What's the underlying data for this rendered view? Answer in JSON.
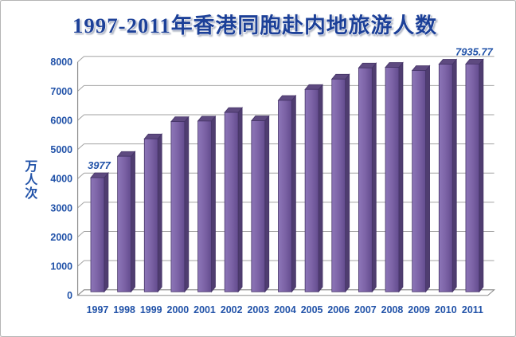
{
  "chart_data": {
    "type": "bar",
    "style": "3d-column",
    "title": "1997-2011年香港同胞赴内地旅游人数",
    "xlabel": "",
    "ylabel": "万人次",
    "categories": [
      "1997",
      "1998",
      "1999",
      "2000",
      "2001",
      "2002",
      "2003",
      "2004",
      "2005",
      "2006",
      "2007",
      "2008",
      "2009",
      "2010",
      "2011"
    ],
    "values": [
      3977,
      4720,
      5330,
      5930,
      5950,
      6250,
      5960,
      6670,
      7050,
      7410,
      7800,
      7820,
      7710,
      7930,
      7935.77
    ],
    "ylim": [
      0,
      8000
    ],
    "yticks": [
      0,
      1000,
      2000,
      3000,
      4000,
      5000,
      6000,
      7000,
      8000
    ],
    "grid": true,
    "legend": false,
    "data_labels": [
      {
        "category": "1997",
        "text": "3977"
      },
      {
        "category": "2011",
        "text": "7935.77"
      }
    ],
    "colors": {
      "text_blue": "#2152a8",
      "title_blue": "#1a3f98",
      "gridline": "#a2a2a2",
      "wall": "#8d8d8d",
      "bar_front_light": "#8d76b8",
      "bar_front": "#7c63a6",
      "bar_front_dark": "#634c8e",
      "bar_top": "#5e4a80",
      "bar_side": "#4f3d70",
      "bar_stroke": "#453467",
      "background": "#ffffff",
      "frame_border": "#b4b4b4"
    }
  }
}
